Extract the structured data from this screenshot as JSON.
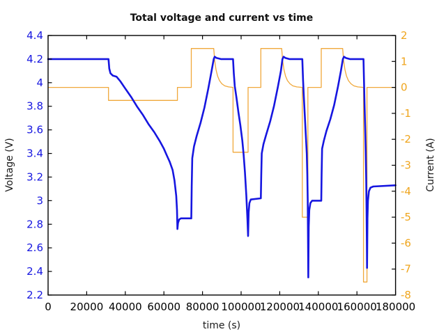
{
  "title": "Total voltage and current vs time",
  "colors": {
    "voltage_blue": "#1616e0",
    "current_orange": "#efa51d",
    "frame_black": "#000000",
    "background": "#ffffff"
  },
  "chart_data": {
    "type": "line",
    "title": "Total voltage and current vs time",
    "xlabel": "time (s)",
    "ylabel_left": "Voltage (V)",
    "ylabel_right": "Current (A)",
    "grid": false,
    "legend": "none",
    "x_axis": {
      "min": 0,
      "max": 180000,
      "ticks": [
        0,
        20000,
        40000,
        60000,
        80000,
        100000,
        120000,
        140000,
        160000,
        180000
      ],
      "tick_labels": [
        "0",
        "20000",
        "40000",
        "60000",
        "80000",
        "100000",
        "120000",
        "140000",
        "160000",
        "180000"
      ]
    },
    "y_axis_left": {
      "min": 2.2,
      "max": 4.4,
      "color": "#1616e0",
      "ticks": [
        2.2,
        2.4,
        2.6,
        2.8,
        3.0,
        3.2,
        3.4,
        3.6,
        3.8,
        4.0,
        4.2,
        4.4
      ],
      "tick_labels": [
        "2.2",
        "2.4",
        "2.6",
        "2.8",
        "3",
        "3.2",
        "3.4",
        "3.6",
        "3.8",
        "4",
        "4.2",
        "4.4"
      ]
    },
    "y_axis_right": {
      "min": -8,
      "max": 2,
      "color": "#efa51d",
      "ticks": [
        -8,
        -7,
        -6,
        -5,
        -4,
        -3,
        -2,
        -1,
        0,
        1,
        2
      ],
      "tick_labels": [
        "-8",
        "-7",
        "-6",
        "-5",
        "-4",
        "-3",
        "-2",
        "-1",
        "0",
        "1",
        "2"
      ]
    },
    "series": [
      {
        "id": "current",
        "name": "Current (A)",
        "axis": "right",
        "color": "#f0a83a",
        "width": 1.3,
        "points": [
          [
            0,
            0
          ],
          [
            31300,
            0
          ],
          [
            31300,
            -0.5
          ],
          [
            67000,
            -0.5
          ],
          [
            67000,
            0
          ],
          [
            74200,
            0
          ],
          [
            74200,
            1.5
          ],
          [
            85800,
            1.5
          ],
          [
            86300,
            1.03
          ],
          [
            87000,
            0.68
          ],
          [
            87800,
            0.44
          ],
          [
            88800,
            0.26
          ],
          [
            90000,
            0.14
          ],
          [
            91500,
            0.06
          ],
          [
            93500,
            0.02
          ],
          [
            95800,
            0
          ],
          [
            95800,
            -2.5
          ],
          [
            103600,
            -2.5
          ],
          [
            103600,
            0
          ],
          [
            110200,
            0
          ],
          [
            110200,
            1.5
          ],
          [
            121000,
            1.5
          ],
          [
            121500,
            1.03
          ],
          [
            122200,
            0.68
          ],
          [
            123000,
            0.44
          ],
          [
            124000,
            0.26
          ],
          [
            125300,
            0.14
          ],
          [
            126800,
            0.06
          ],
          [
            128800,
            0.02
          ],
          [
            131700,
            0
          ],
          [
            131700,
            -5
          ],
          [
            134600,
            -5
          ],
          [
            134600,
            0
          ],
          [
            141500,
            0
          ],
          [
            141500,
            1.5
          ],
          [
            152600,
            1.5
          ],
          [
            153100,
            1.03
          ],
          [
            153800,
            0.68
          ],
          [
            154600,
            0.44
          ],
          [
            155600,
            0.26
          ],
          [
            156900,
            0.14
          ],
          [
            158400,
            0.06
          ],
          [
            160400,
            0.02
          ],
          [
            163400,
            0
          ],
          [
            163400,
            -7.5
          ],
          [
            165200,
            -7.5
          ],
          [
            165200,
            0
          ],
          [
            180000,
            0
          ]
        ]
      },
      {
        "id": "voltage",
        "name": "Voltage (V)",
        "axis": "left",
        "color": "#1616e0",
        "width": 2.6,
        "points": [
          [
            0,
            4.2
          ],
          [
            31300,
            4.2
          ],
          [
            31700,
            4.12
          ],
          [
            32300,
            4.08
          ],
          [
            33500,
            4.06
          ],
          [
            35500,
            4.05
          ],
          [
            37500,
            4.01
          ],
          [
            40000,
            3.95
          ],
          [
            43000,
            3.88
          ],
          [
            46000,
            3.8
          ],
          [
            49000,
            3.73
          ],
          [
            52000,
            3.65
          ],
          [
            55000,
            3.58
          ],
          [
            58000,
            3.5
          ],
          [
            60000,
            3.44
          ],
          [
            61600,
            3.38
          ],
          [
            63000,
            3.33
          ],
          [
            64500,
            3.26
          ],
          [
            65500,
            3.17
          ],
          [
            66400,
            3.04
          ],
          [
            66800,
            2.92
          ],
          [
            67000,
            2.76
          ],
          [
            67300,
            2.81
          ],
          [
            67900,
            2.84
          ],
          [
            68800,
            2.85
          ],
          [
            74200,
            2.85
          ],
          [
            74400,
            3.12
          ],
          [
            74700,
            3.36
          ],
          [
            75600,
            3.46
          ],
          [
            77000,
            3.55
          ],
          [
            79000,
            3.66
          ],
          [
            81000,
            3.79
          ],
          [
            83000,
            3.95
          ],
          [
            84600,
            4.09
          ],
          [
            85800,
            4.2
          ],
          [
            86300,
            4.22
          ],
          [
            87200,
            4.21
          ],
          [
            88500,
            4.205
          ],
          [
            89500,
            4.2
          ],
          [
            95800,
            4.2
          ],
          [
            96200,
            4.08
          ],
          [
            96700,
            3.97
          ],
          [
            97600,
            3.87
          ],
          [
            98600,
            3.75
          ],
          [
            99600,
            3.64
          ],
          [
            100600,
            3.51
          ],
          [
            101300,
            3.39
          ],
          [
            102000,
            3.24
          ],
          [
            102700,
            3.04
          ],
          [
            103300,
            2.84
          ],
          [
            103600,
            2.7
          ],
          [
            103900,
            2.9
          ],
          [
            104300,
            2.98
          ],
          [
            105000,
            3.01
          ],
          [
            110200,
            3.02
          ],
          [
            110450,
            3.22
          ],
          [
            110700,
            3.4
          ],
          [
            111600,
            3.48
          ],
          [
            113000,
            3.56
          ],
          [
            115000,
            3.67
          ],
          [
            117000,
            3.8
          ],
          [
            119000,
            3.96
          ],
          [
            120600,
            4.1
          ],
          [
            121400,
            4.2
          ],
          [
            122000,
            4.22
          ],
          [
            122900,
            4.21
          ],
          [
            124000,
            4.205
          ],
          [
            125000,
            4.2
          ],
          [
            131700,
            4.2
          ],
          [
            132100,
            4.02
          ],
          [
            132500,
            3.88
          ],
          [
            133000,
            3.72
          ],
          [
            133500,
            3.56
          ],
          [
            134000,
            3.4
          ],
          [
            134300,
            3.22
          ],
          [
            134500,
            3.0
          ],
          [
            134700,
            2.6
          ],
          [
            134800,
            2.35
          ],
          [
            135000,
            2.78
          ],
          [
            135300,
            2.92
          ],
          [
            135900,
            2.98
          ],
          [
            136800,
            3.0
          ],
          [
            141500,
            3.0
          ],
          [
            141700,
            3.22
          ],
          [
            141950,
            3.44
          ],
          [
            142900,
            3.51
          ],
          [
            144200,
            3.59
          ],
          [
            146200,
            3.69
          ],
          [
            148200,
            3.81
          ],
          [
            150200,
            3.97
          ],
          [
            151700,
            4.1
          ],
          [
            152700,
            4.2
          ],
          [
            153300,
            4.22
          ],
          [
            154200,
            4.21
          ],
          [
            155300,
            4.205
          ],
          [
            156300,
            4.2
          ],
          [
            163400,
            4.2
          ],
          [
            163650,
            4.02
          ],
          [
            163950,
            3.82
          ],
          [
            164250,
            3.62
          ],
          [
            164550,
            3.42
          ],
          [
            164800,
            3.18
          ],
          [
            165000,
            2.92
          ],
          [
            165150,
            2.6
          ],
          [
            165250,
            2.43
          ],
          [
            165450,
            2.85
          ],
          [
            165700,
            3.0
          ],
          [
            166200,
            3.08
          ],
          [
            167000,
            3.11
          ],
          [
            168500,
            3.12
          ],
          [
            180000,
            3.13
          ]
        ]
      }
    ]
  }
}
